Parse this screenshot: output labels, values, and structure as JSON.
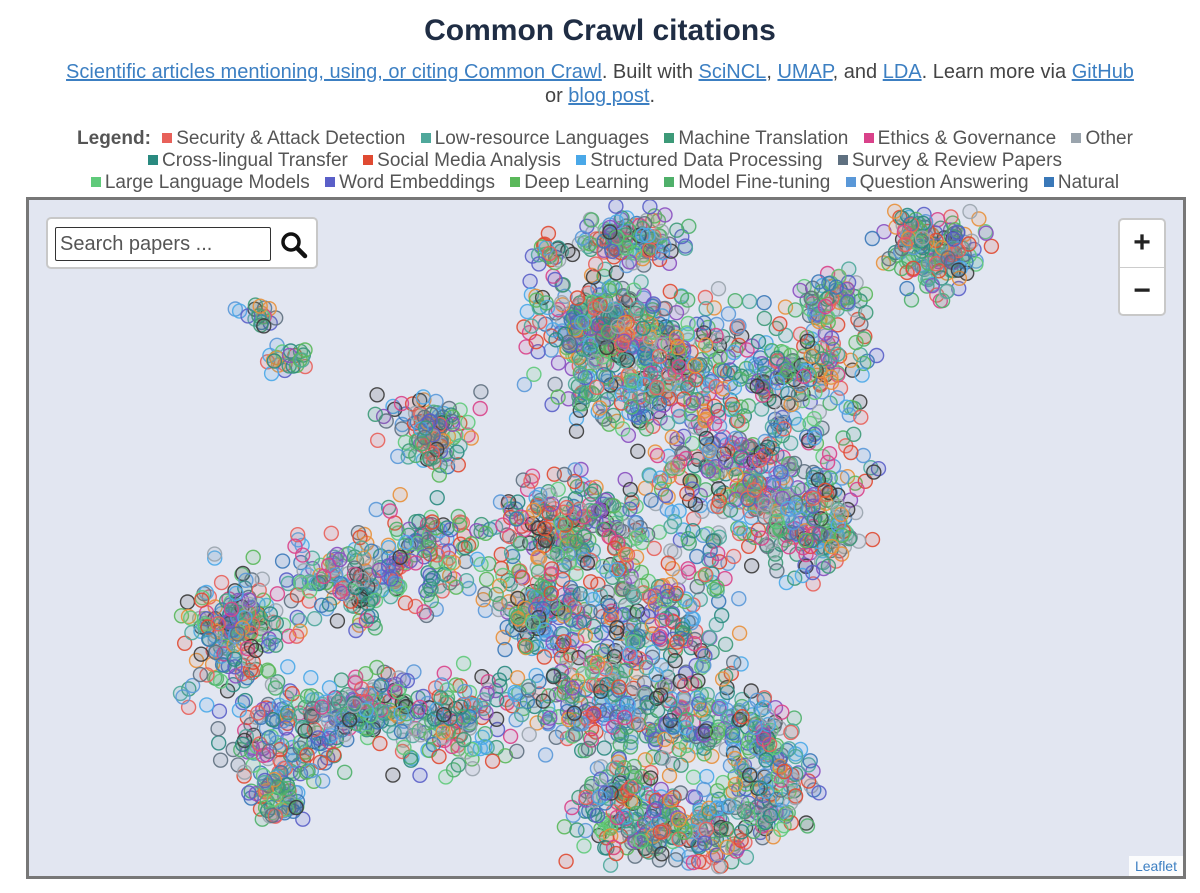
{
  "page": {
    "title": "Common Crawl citations",
    "subtitle": {
      "link_articles": "Scientific articles mentioning, using, or citing Common Crawl",
      "text_built": ". Built with ",
      "link_scincl": "SciNCL",
      "sep1": ", ",
      "link_umap": "UMAP",
      "sep2": ", and ",
      "link_lda": "LDA",
      "text_learn": ". Learn more via ",
      "link_github": "GitHub",
      "text_or": " or ",
      "link_blog": "blog post",
      "text_end": "."
    }
  },
  "legend": {
    "label": "Legend:",
    "items": [
      {
        "label": "Security & Attack Detection",
        "color": "#e8615a"
      },
      {
        "label": "Low-resource Languages",
        "color": "#4fa89b"
      },
      {
        "label": "Machine Translation",
        "color": "#3d9a78"
      },
      {
        "label": "Ethics & Governance",
        "color": "#d9428a"
      },
      {
        "label": "Other",
        "color": "#9aa4ad"
      },
      {
        "label": "Cross-lingual Transfer",
        "color": "#2a8a80"
      },
      {
        "label": "Social Media Analysis",
        "color": "#e04a32"
      },
      {
        "label": "Structured Data Processing",
        "color": "#4aa8e8"
      },
      {
        "label": "Survey & Review Papers",
        "color": "#5f7080"
      },
      {
        "label": "Large Language Models",
        "color": "#5fca7a"
      },
      {
        "label": "Word Embeddings",
        "color": "#5a5fc8"
      },
      {
        "label": "Deep Learning",
        "color": "#5ab85a"
      },
      {
        "label": "Model Fine-tuning",
        "color": "#4fb06a"
      },
      {
        "label": "Question Answering",
        "color": "#5a98d8"
      },
      {
        "label": "Natural",
        "color": "#3a78b8"
      }
    ]
  },
  "map": {
    "search_placeholder": "Search papers ...",
    "search_icon": "search-icon",
    "zoom_in_label": "+",
    "zoom_out_label": "−",
    "attribution": "Leaflet",
    "background_color": "#e2e6f1",
    "extra_point_colors": [
      "#8a4fc0",
      "#e8903a",
      "#3a3a3a"
    ]
  }
}
